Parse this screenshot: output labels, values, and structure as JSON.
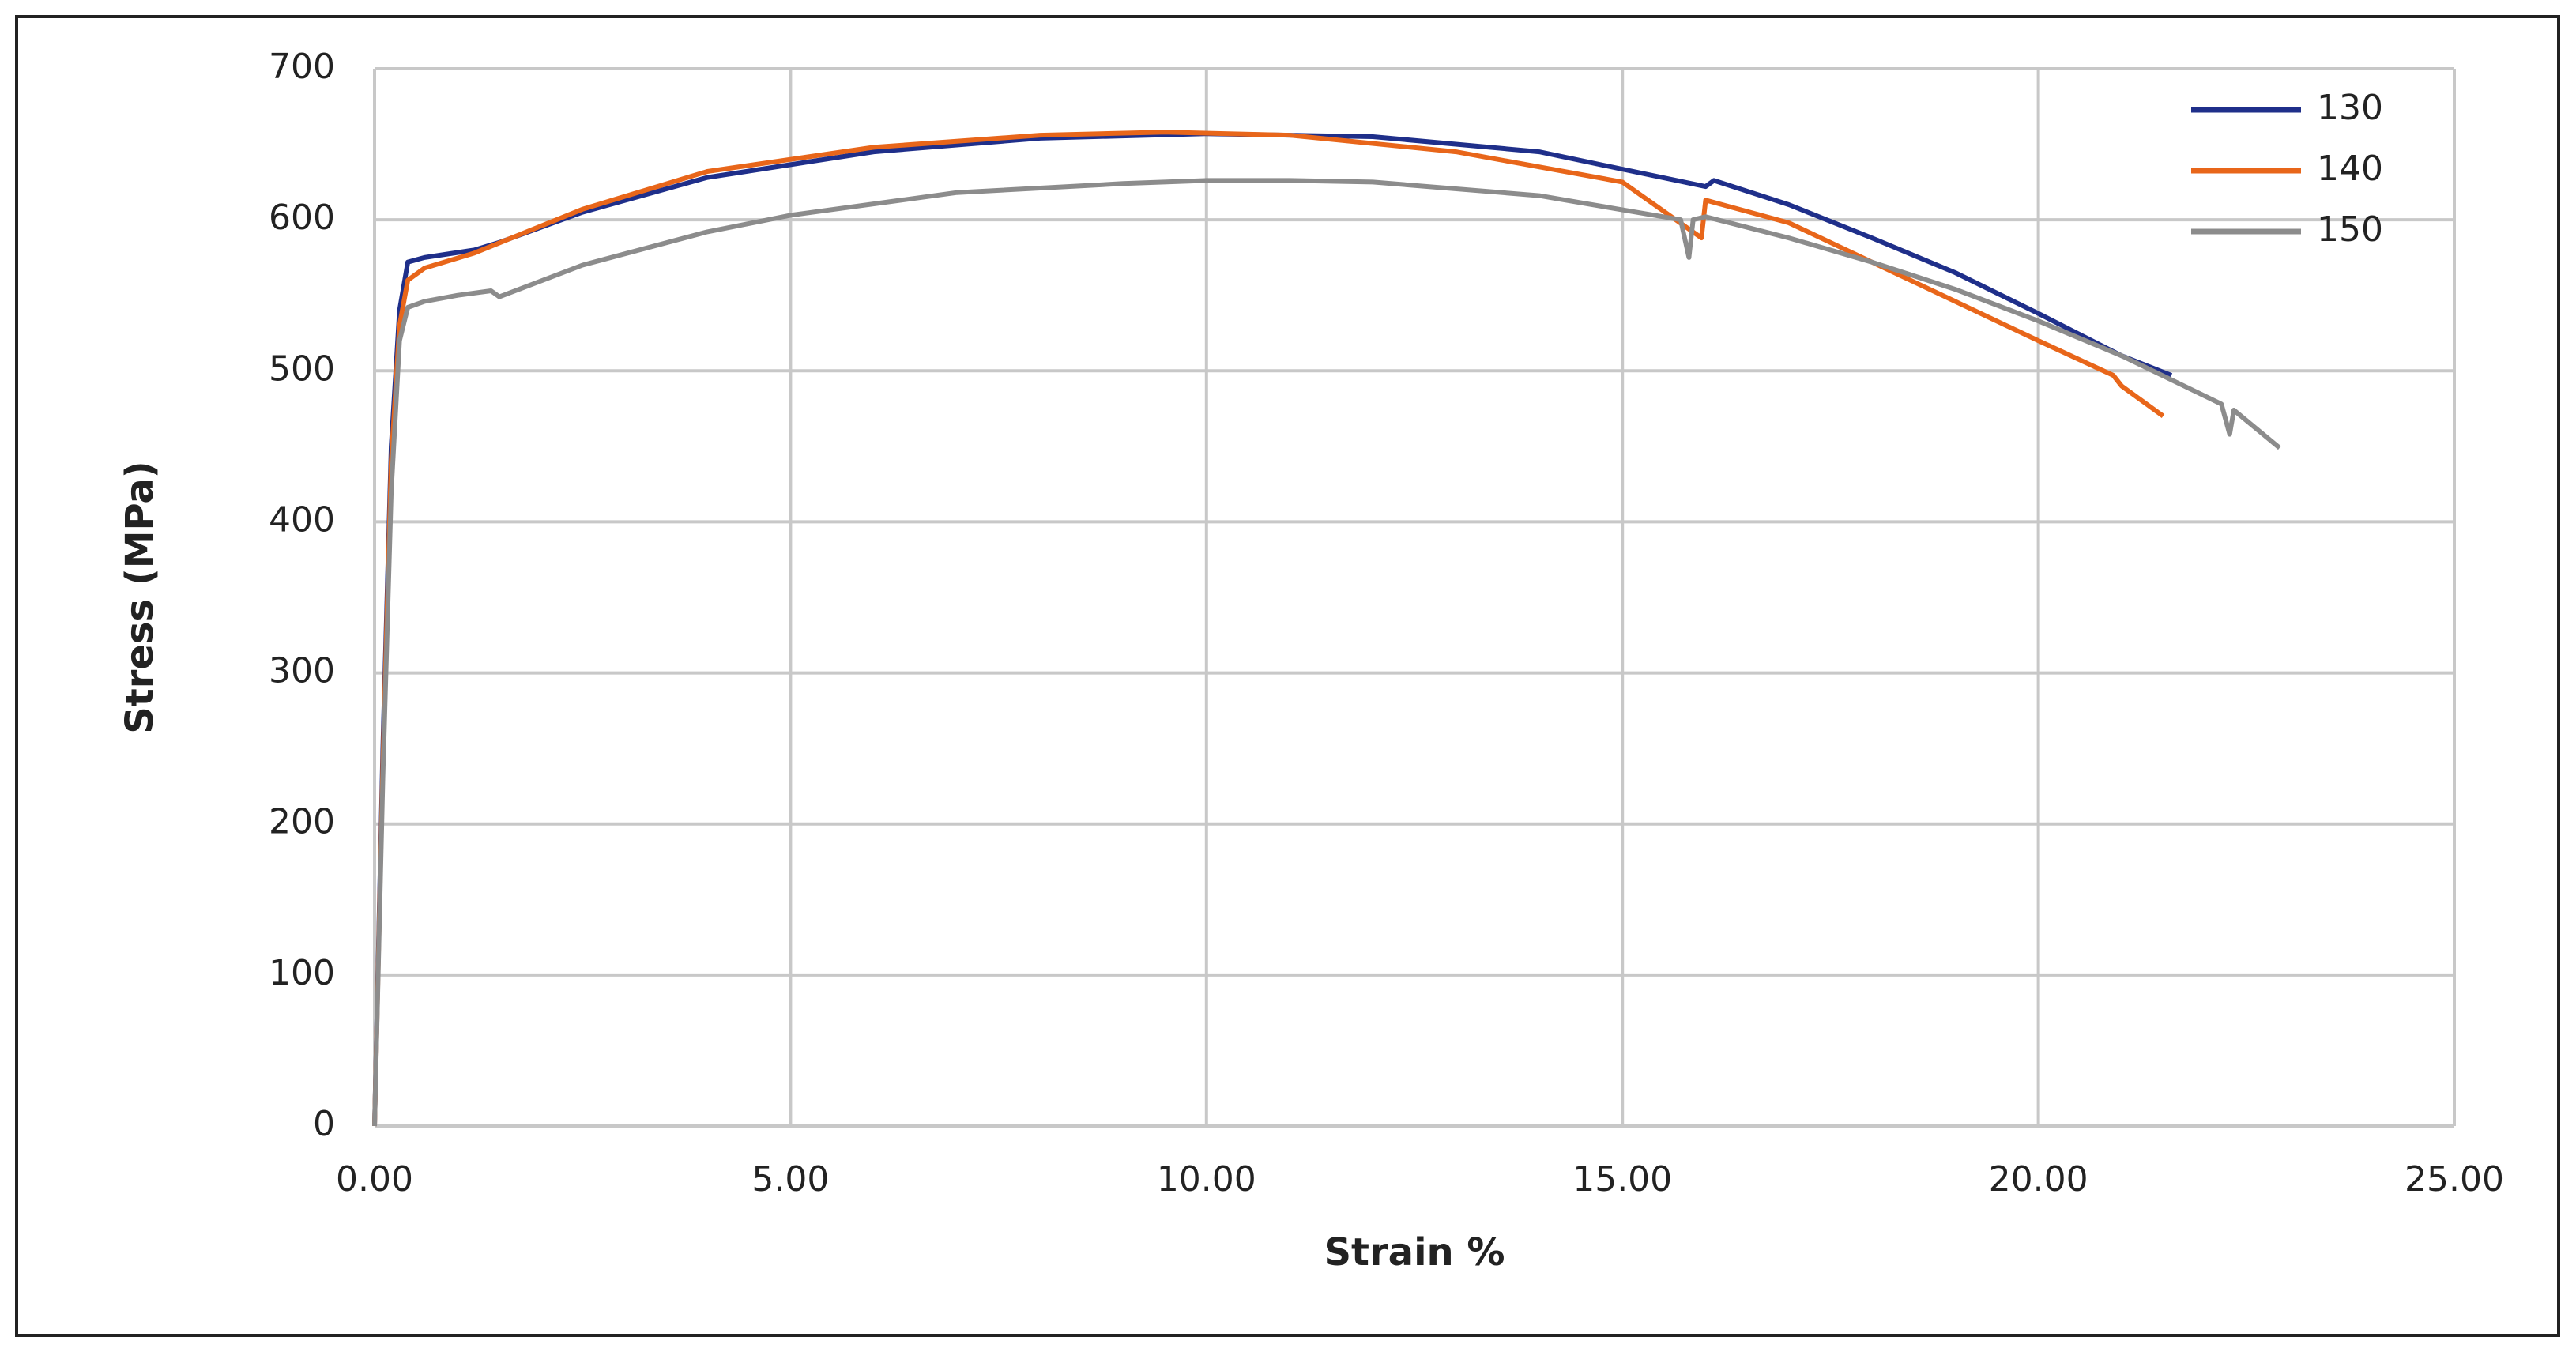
{
  "chart_data": {
    "type": "line",
    "x_label": "Strain %",
    "y_label": "Stress (MPa)",
    "xlim": [
      0,
      25
    ],
    "ylim": [
      0,
      700
    ],
    "xticks": [
      {
        "value": 0,
        "label": "0.00"
      },
      {
        "value": 5,
        "label": "5.00"
      },
      {
        "value": 10,
        "label": "10.00"
      },
      {
        "value": 15,
        "label": "15.00"
      },
      {
        "value": 20,
        "label": "20.00"
      },
      {
        "value": 25,
        "label": "25.00"
      }
    ],
    "yticks": [
      0,
      100,
      200,
      300,
      400,
      500,
      600,
      700
    ],
    "grid": true,
    "legend": "top-right",
    "series": [
      {
        "name": "130",
        "color": "#1f2f8a",
        "x": [
          0,
          0.1,
          0.2,
          0.3,
          0.4,
          0.6,
          1.2,
          1.5,
          2.5,
          4,
          6,
          8,
          10,
          12,
          14,
          16,
          16.1,
          17,
          18,
          19,
          20,
          21,
          21.6
        ],
        "values": [
          0,
          250,
          450,
          540,
          572,
          575,
          580,
          585,
          605,
          628,
          645,
          654,
          657,
          655,
          645,
          622,
          626,
          610,
          588,
          565,
          538,
          510,
          497
        ]
      },
      {
        "name": "140",
        "color": "#e8661a",
        "x": [
          0,
          0.1,
          0.2,
          0.3,
          0.4,
          0.6,
          1.2,
          2.5,
          4,
          6,
          8,
          9.5,
          11,
          13,
          15,
          15.95,
          16,
          17,
          18,
          19,
          20,
          20.9,
          21,
          21.5
        ],
        "values": [
          0,
          240,
          440,
          530,
          560,
          568,
          578,
          607,
          632,
          648,
          656,
          658,
          656,
          645,
          625,
          588,
          613,
          598,
          572,
          546,
          520,
          497,
          490,
          470
        ]
      },
      {
        "name": "150",
        "color": "#8c8c8c",
        "x": [
          0,
          0.1,
          0.2,
          0.3,
          0.4,
          0.6,
          1,
          1.4,
          1.5,
          2.5,
          4,
          5,
          7,
          9,
          10,
          11,
          12,
          14,
          15.7,
          15.8,
          15.85,
          16,
          17,
          18,
          19,
          20,
          21,
          22.2,
          22.3,
          22.35,
          22.9
        ],
        "values": [
          0,
          230,
          420,
          520,
          542,
          546,
          550,
          553,
          549,
          570,
          592,
          603,
          618,
          624,
          626,
          626,
          625,
          616,
          600,
          575,
          600,
          602,
          588,
          572,
          554,
          533,
          510,
          478,
          458,
          474,
          449
        ]
      }
    ]
  }
}
